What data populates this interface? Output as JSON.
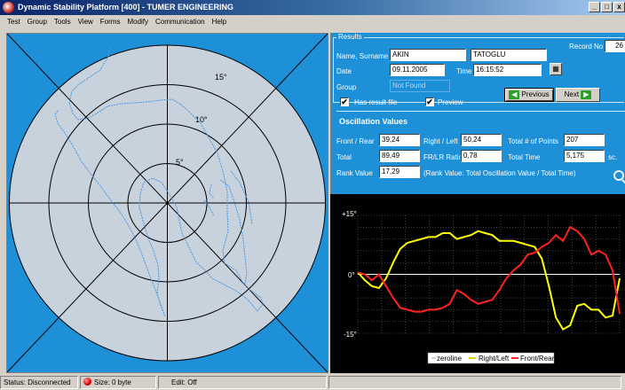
{
  "window": {
    "title": "Dynamic Stability Platform [400] - TUMER ENGINEERING",
    "minimize": "_",
    "maximize": "□",
    "close": "x"
  },
  "menu": [
    "Test",
    "Group",
    "Tools",
    "View",
    "Forms",
    "Modify",
    "Communication",
    "Help"
  ],
  "polar": {
    "ring_labels": [
      "15°",
      "10°",
      "5°"
    ],
    "rings_deg": [
      5,
      10,
      15,
      20
    ],
    "colors": {
      "background": "#1e90d8",
      "plate": "#c8d2dc",
      "trace": "#4a98e0"
    }
  },
  "results": {
    "group_title": "Results",
    "name_label": "Name, Surname",
    "first_name": "AKIN",
    "last_name": "TATOGLU",
    "record_label": "Record No",
    "record_no": "26",
    "date_label": "Date",
    "date": "09.11.2005",
    "time_label": "Time",
    "time": "16:15:52",
    "group_label": "Group",
    "group_value": "Not Found",
    "has_result_label": "Has result file",
    "preview_label": "Preview",
    "has_result_checked": "✔",
    "preview_checked": "✔",
    "previous": "Previous",
    "next": "Next"
  },
  "oscillation": {
    "heading": "Oscillation Values",
    "front_rear_label": "Front / Rear",
    "front_rear": "39,24",
    "right_left_label": "Right / Left",
    "right_left": "50,24",
    "points_label": "Total # of Points",
    "points": "207",
    "total_label": "Total",
    "total": "89,49",
    "ratio_label": "FR/LR Ratio",
    "ratio": "0,78",
    "total_time_label": "Total Time",
    "total_time": "5,175",
    "time_unit": "sc.",
    "rank_label": "Rank Value",
    "rank": "17,29",
    "rank_note": "(Rank Value: Total Oscillation Value / Total Time)"
  },
  "chart_data": {
    "type": "line",
    "ylim": [
      -15,
      15
    ],
    "y_tick_labels": [
      "+15°",
      "0°",
      "-15°"
    ],
    "legend": [
      "zeroline",
      "Right/Left",
      "Front/Rear"
    ],
    "series": [
      {
        "name": "Right/Left",
        "color": "#ffff00",
        "values": [
          0.5,
          -1.5,
          -3,
          -3.5,
          -1,
          3,
          6.5,
          8,
          8.5,
          9,
          9.5,
          9.5,
          10.5,
          10.5,
          9,
          9.5,
          10,
          11,
          10.5,
          10,
          8.5,
          8.5,
          8.5,
          8,
          7.5,
          7,
          4,
          -3,
          -11,
          -14,
          -13,
          -8,
          -7.5,
          -9,
          -9,
          -11,
          -10.5,
          -1
        ]
      },
      {
        "name": "Front/Rear",
        "color": "#ff2020",
        "values": [
          0.5,
          0,
          -1.5,
          0,
          -3,
          -6,
          -8.5,
          -9,
          -9.5,
          -9.5,
          -9,
          -9,
          -8.5,
          -7.5,
          -4,
          -5,
          -6.5,
          -7.5,
          -7,
          -6.5,
          -4,
          -1,
          1,
          2.5,
          5,
          5.5,
          7,
          8,
          10,
          8.5,
          12,
          11,
          9,
          5,
          6,
          5,
          1,
          -10
        ]
      },
      {
        "name": "zeroline",
        "color": "#ffffff",
        "values": [
          0,
          0
        ]
      }
    ]
  },
  "status": {
    "connection": "Status: Disconnected",
    "size": "Size: 0 byte",
    "edit": "Edit: Off"
  }
}
